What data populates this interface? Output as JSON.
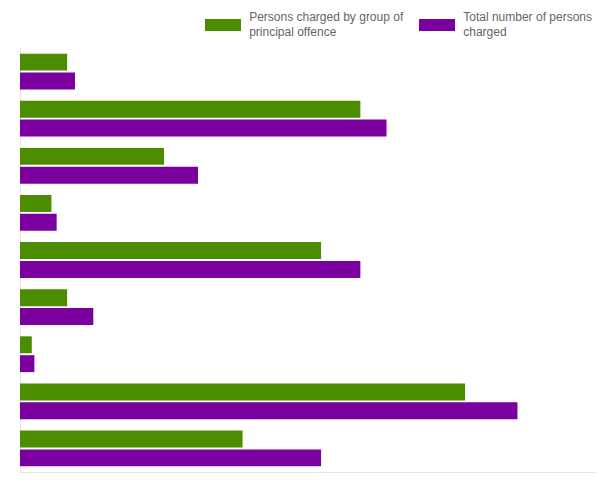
{
  "chart_data": {
    "type": "bar",
    "orientation": "horizontal",
    "categories": [
      null,
      null,
      null,
      null,
      null,
      null,
      null,
      null,
      null
    ],
    "series": [
      {
        "name": "Persons charged by group of\nprincipal offence",
        "color": "#4C8C00",
        "values": [
          1800,
          13000,
          5500,
          1200,
          11500,
          1800,
          450,
          17000,
          8500
        ]
      },
      {
        "name": "Total number of persons\ncharged",
        "color": "#7B00A0",
        "values": [
          2100,
          14000,
          6800,
          1400,
          13000,
          2800,
          550,
          19000,
          11500
        ]
      }
    ],
    "xlim": [
      0,
      22000
    ],
    "grid": false,
    "tick_labels": false,
    "legend": "upper right"
  }
}
